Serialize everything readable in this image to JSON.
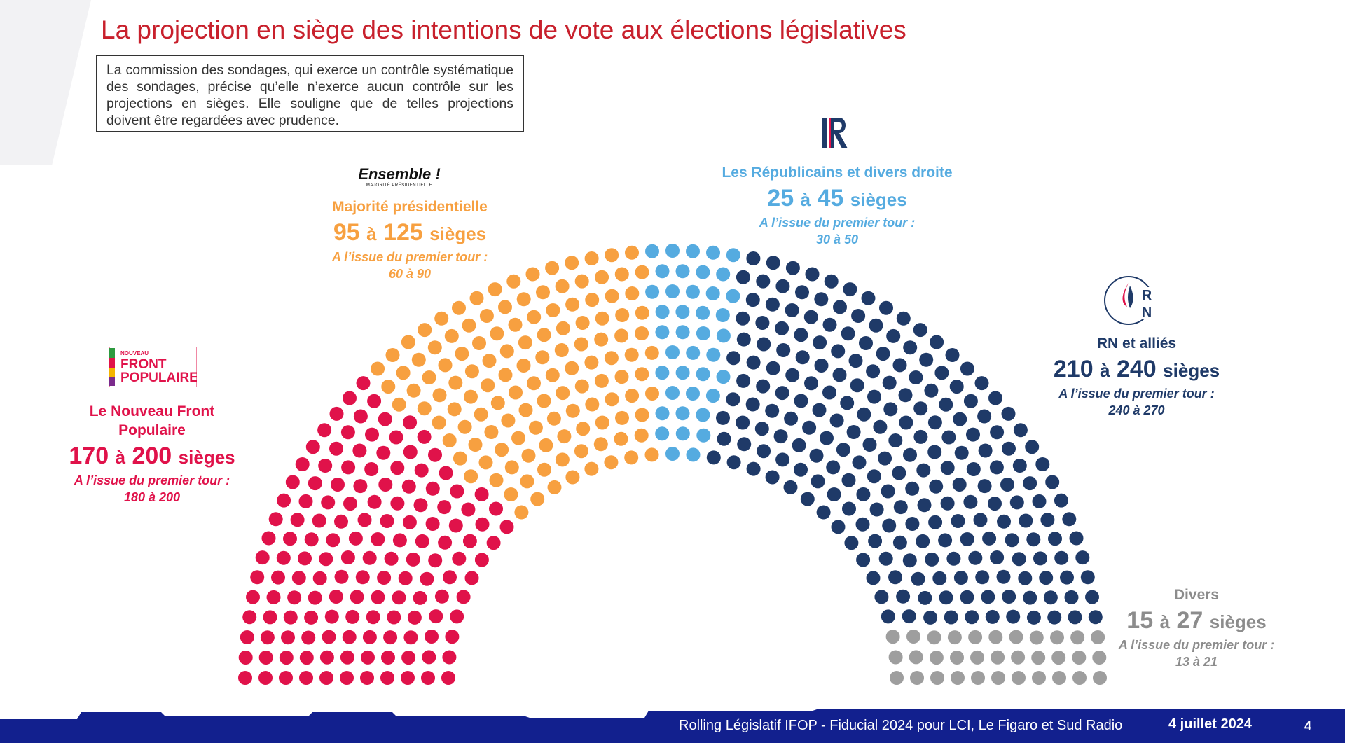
{
  "title": "La projection en siège des intentions de vote aux élections législatives",
  "disclaimer": "La commission des sondages, qui exerce un contrôle systématique des sondages, précise qu’elle n’exerce aucun contrôle sur les projections en sièges. Elle souligne que de telles projections doivent être regardées avec prudence.",
  "colors": {
    "nfp": "#e0124a",
    "ens": "#f7a040",
    "lr": "#55abe0",
    "rn": "#1f3a68",
    "div": "#9e9e9e",
    "title": "#c8202c",
    "footer": "#12208e"
  },
  "parties": {
    "nfp": {
      "logo_line1": "NOUVEAU",
      "logo_line2": "FRONT",
      "logo_line3": "POPULAIRE",
      "name_line1": "Le Nouveau Front",
      "name_line2": "Populaire",
      "min": "170",
      "sep": "à",
      "max": "200",
      "unit": "sièges",
      "first_label": "A l’issue du premier tour :",
      "first_values": "180 à 200"
    },
    "ens": {
      "logo_text": "Ensemble !",
      "logo_sub": "MAJORITÉ PRÉSIDENTIELLE",
      "name": "Majorité présidentielle",
      "min": "95",
      "sep": "à",
      "max": "125",
      "unit": "sièges",
      "first_label": "A l’issue du premier tour :",
      "first_values": "60 à 90"
    },
    "lr": {
      "name": "Les Républicains et divers droite",
      "min": "25",
      "sep": "à",
      "max": "45",
      "unit": "sièges",
      "first_label": "A l’issue du premier tour :",
      "first_values": "30 à 50"
    },
    "rn": {
      "logo_r": "R",
      "logo_n": "N",
      "name": "RN et alliés",
      "min": "210",
      "sep": "à",
      "max": "240",
      "unit": "sièges",
      "first_label": "A l’issue du premier tour :",
      "first_values": "240 à 270"
    },
    "div": {
      "name": "Divers",
      "min": "15",
      "sep": "à",
      "max": "27",
      "unit": "sièges",
      "first_label": "A l’issue du premier tour :",
      "first_values": "13 à 21"
    }
  },
  "footer": {
    "source": "Rolling Législatif IFOP - Fiducial 2024 pour LCI, Le Figaro et Sud Radio",
    "date": "4 juillet 2024",
    "page": "4"
  }
}
